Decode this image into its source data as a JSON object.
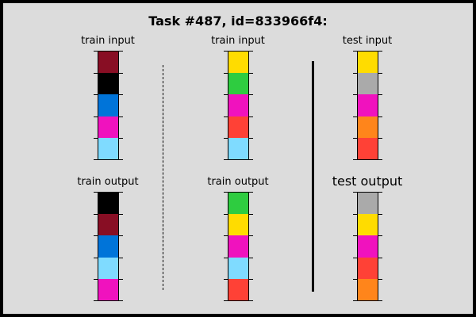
{
  "title": "Task #487, id=833966f4:",
  "palette": {
    "black": "#000000",
    "maroon": "#880e24",
    "blue": "#0074d9",
    "magenta": "#f012be",
    "light_blue": "#7fdbff",
    "yellow": "#ffdc00",
    "green": "#2ecc40",
    "red": "#ff4136",
    "gray": "#aaaaaa",
    "orange": "#ff851b"
  },
  "panels": [
    {
      "label": "train input",
      "cells": [
        "#880e24",
        "#000000",
        "#0074d9",
        "#f012be",
        "#7fdbff"
      ]
    },
    {
      "label": "train output",
      "cells": [
        "#000000",
        "#880e24",
        "#0074d9",
        "#7fdbff",
        "#f012be"
      ]
    },
    {
      "label": "train input",
      "cells": [
        "#ffdc00",
        "#2ecc40",
        "#f012be",
        "#ff4136",
        "#7fdbff"
      ]
    },
    {
      "label": "train output",
      "cells": [
        "#2ecc40",
        "#ffdc00",
        "#f012be",
        "#7fdbff",
        "#ff4136"
      ]
    },
    {
      "label": "test input",
      "cells": [
        "#ffdc00",
        "#aaaaaa",
        "#f012be",
        "#ff851b",
        "#ff4136"
      ]
    },
    {
      "label": "test output",
      "cells": [
        "#aaaaaa",
        "#ffdc00",
        "#f012be",
        "#ff4136",
        "#ff851b"
      ]
    }
  ]
}
